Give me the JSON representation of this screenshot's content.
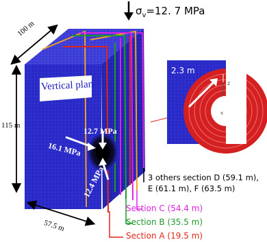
{
  "stress": {
    "sigma_symbol": "σ",
    "sigma_sub": "v",
    "sigma_value": "=12. 7 MPa"
  },
  "dimensions": {
    "depth": "100 m",
    "height": "115 m",
    "width": "57.5 m"
  },
  "plane_label": "Vertical plan",
  "inset_radius": "2.3 m",
  "inset_axis_z": "z",
  "inset_axis_x": "x",
  "pressures": {
    "top": "12.7  MPa",
    "left": "16.1 MPa",
    "bottom": "12.4 MPa"
  },
  "others_line1": "3 others section D (59.1 m),",
  "others_line2": "E (61.1 m), F (63.5 m)",
  "sections": [
    {
      "label": "Section C (54.4 m)",
      "color": "#e020e0"
    },
    {
      "label": "Section B (35.5 m)",
      "color": "#1f9a2a"
    },
    {
      "label": "Section A (19.5 m)",
      "color": "#e4261a"
    }
  ],
  "colors": {
    "mesh_blue": "#2727c8",
    "section_orange": "#f0a028",
    "inset_red": "#d42020"
  }
}
